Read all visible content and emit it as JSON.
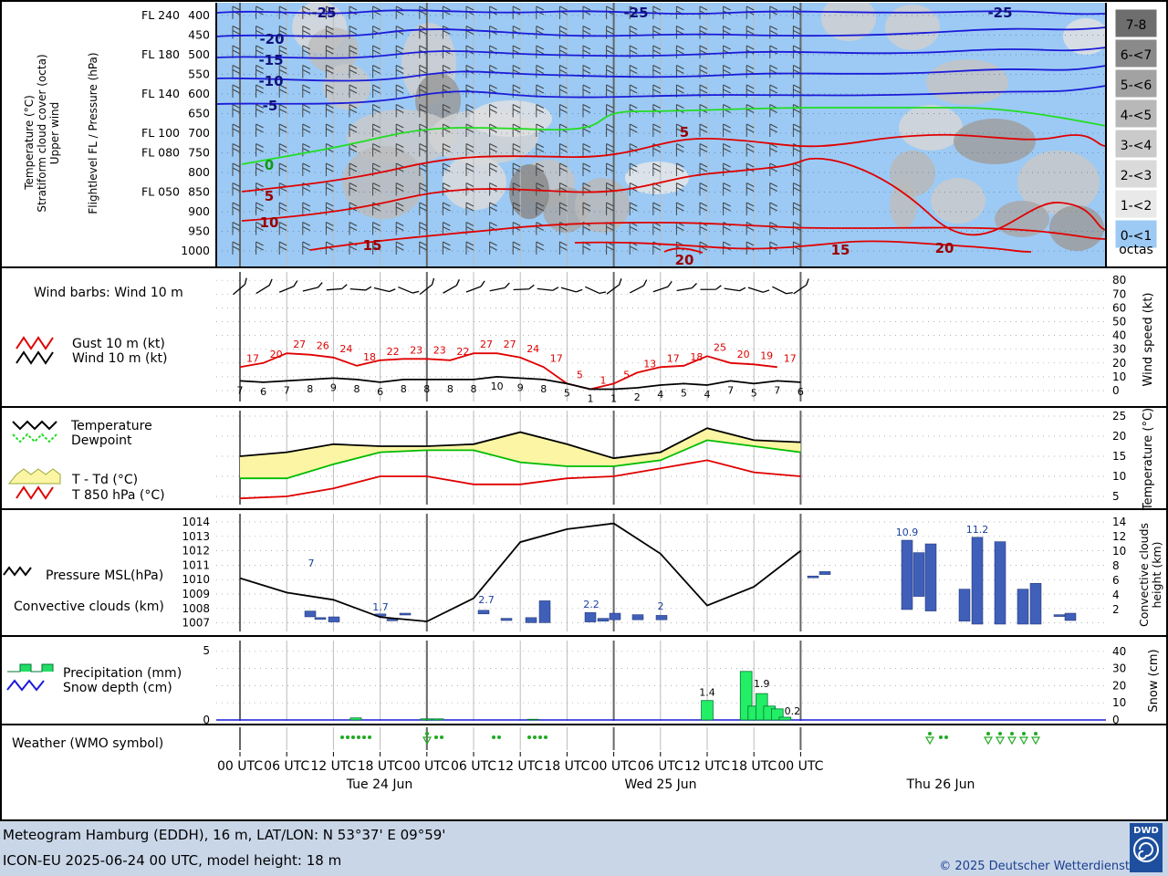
{
  "footer": {
    "line1": "Meteogram Hamburg (EDDH), 16 m, LAT/LON: N 53°37' E 09°59'",
    "line2": "ICON-EU 2025-06-24 00 UTC, model height: 18 m",
    "copyright": "© 2025 Deutscher Wetterdienst",
    "logo_text": "DWD"
  },
  "panel1": {
    "labels": [
      "Temperature (°C)",
      "Stratiform cloud cover (octa)",
      "Upper wind"
    ],
    "axis_label": "Flightlevel FL / Pressure (hPa)",
    "pressure_ticks": [
      "400",
      "450",
      "500",
      "550",
      "600",
      "650",
      "700",
      "750",
      "800",
      "850",
      "900",
      "950",
      "1000"
    ],
    "fl_ticks": [
      "FL 240",
      "FL 180",
      "FL 140",
      "FL 100",
      "FL 080",
      "FL 050"
    ],
    "octas_legend": [
      "7-8",
      "6-<7",
      "5-<6",
      "4-<5",
      "3-<4",
      "2-<3",
      "1-<2",
      "0-<1"
    ],
    "octas_unit": "octas",
    "iso_labels": [
      "-25",
      "-25",
      "-25",
      "-20",
      "-15",
      "-10",
      "-5",
      "0",
      "5",
      "10",
      "15",
      "20",
      "15",
      "20",
      "5"
    ]
  },
  "panel2": {
    "title": "Wind barbs: Wind 10 m",
    "legend_gust": "Gust 10 m (kt)",
    "legend_wind": "Wind 10 m (kt)",
    "axis_label": "Wind speed (kt)",
    "ticks": [
      "80",
      "70",
      "60",
      "50",
      "40",
      "30",
      "20",
      "10",
      "0"
    ]
  },
  "panel3": {
    "legend_temp": "Temperature",
    "legend_dew": "Dewpoint",
    "legend_spread": "T - Td (°C)",
    "legend_t850": "T 850 hPa (°C)",
    "axis_label": "Temperature (°C)",
    "ticks": [
      "25",
      "20",
      "15",
      "10",
      "5"
    ]
  },
  "panel4": {
    "legend_pressure": "Pressure MSL(hPa)",
    "legend_conv": "Convective clouds (km)",
    "axis_label": "Convective clouds height (km)",
    "left_ticks": [
      "1014",
      "1013",
      "1012",
      "1011",
      "1010",
      "1009",
      "1008",
      "1007"
    ],
    "right_ticks": [
      "14",
      "12",
      "10",
      "8",
      "6",
      "4",
      "2"
    ]
  },
  "panel5": {
    "legend_precip": "Precipitation (mm)",
    "legend_snow": "Snow depth (cm)",
    "axis_label": "Snow (cm)",
    "left_ticks": [
      "5",
      "0"
    ],
    "right_ticks": [
      "40",
      "30",
      "20",
      "10",
      "0"
    ]
  },
  "panel6": {
    "title": "Weather (WMO symbol)"
  },
  "time_axis": {
    "hours": [
      "00 UTC",
      "06 UTC",
      "12 UTC",
      "18 UTC",
      "00 UTC",
      "06 UTC",
      "12 UTC",
      "18 UTC",
      "00 UTC",
      "06 UTC",
      "12 UTC",
      "18 UTC",
      "00 UTC"
    ],
    "days": [
      "Tue 24 Jun",
      "Wed 25 Jun",
      "Thu 26 Jun"
    ]
  },
  "chart_data": [
    {
      "type": "line",
      "title": "Wind 10 m / Gust 10 m",
      "x": [
        0,
        3,
        6,
        9,
        12,
        15,
        18,
        21,
        24,
        27,
        30,
        33,
        36,
        39,
        42,
        45,
        48,
        51,
        54,
        57,
        60,
        63,
        66,
        69,
        72
      ],
      "series": [
        {
          "name": "Gust 10 m (kt)",
          "color": "#e00000",
          "values": [
            17,
            20,
            27,
            26,
            24,
            18,
            22,
            23,
            23,
            22,
            27,
            27,
            24,
            17,
            5,
            1,
            5,
            13,
            17,
            18,
            25,
            20,
            19,
            17,
            null
          ]
        },
        {
          "name": "Wind 10 m (kt)",
          "color": "#000000",
          "values": [
            7,
            6,
            7,
            8,
            9,
            8,
            6,
            8,
            8,
            8,
            8,
            10,
            9,
            8,
            5,
            1,
            1,
            2,
            4,
            5,
            4,
            7,
            5,
            7,
            6
          ]
        }
      ],
      "ylim": [
        0,
        80
      ],
      "ylabel": "Wind speed (kt)"
    },
    {
      "type": "line",
      "title": "Temperature / Dewpoint / T 850 hPa",
      "x": [
        0,
        6,
        12,
        18,
        24,
        30,
        36,
        42,
        48,
        54,
        60,
        66,
        72
      ],
      "series": [
        {
          "name": "Temperature",
          "color": "#000000",
          "values": [
            15,
            16,
            18,
            17.5,
            17.5,
            18,
            21,
            18,
            14.5,
            16,
            22,
            19,
            18.5
          ]
        },
        {
          "name": "Dewpoint",
          "color": "#00bb00",
          "values": [
            9.5,
            9.5,
            13,
            16,
            16.5,
            16.5,
            13.5,
            12.5,
            12.5,
            14,
            19,
            17.5,
            16
          ]
        },
        {
          "name": "T 850 hPa",
          "color": "#e00000",
          "values": [
            4.5,
            5,
            7,
            10,
            10,
            8,
            8,
            9.5,
            10,
            12,
            14,
            11,
            10
          ]
        }
      ],
      "ylim": [
        4,
        26
      ],
      "ylabel": "Temperature (°C)"
    },
    {
      "type": "line",
      "title": "Pressure MSL / Convective clouds",
      "x": [
        0,
        6,
        12,
        18,
        24,
        30,
        36,
        42,
        48,
        54,
        60,
        66,
        72
      ],
      "series": [
        {
          "name": "Pressure MSL(hPa)",
          "color": "#000000",
          "values": [
            1010.1,
            1009.1,
            1008.6,
            1007.4,
            1007.1,
            1008.7,
            1012.6,
            1013.5,
            1013.9,
            1011.8,
            1008.2,
            1009.5,
            1012.0
          ]
        }
      ],
      "conv_cloud_tops_km": {
        "x": [
          6,
          12,
          20,
          26,
          35,
          54,
          60
        ],
        "values": [
          7,
          1.7,
          2.7,
          2.2,
          2,
          10.9,
          11.2
        ]
      },
      "ylim": [
        1006.5,
        1014.5
      ],
      "ylabel": "Convective clouds height (km)"
    },
    {
      "type": "bar",
      "title": "Precipitation / Snow depth",
      "x": [
        60,
        65,
        66,
        67,
        68,
        69,
        70
      ],
      "values": [
        1.4,
        3.5,
        1.0,
        1.9,
        1.0,
        0.8,
        0.2
      ],
      "annotations": [
        "1.4",
        "1.9",
        "0.2"
      ],
      "ylim": [
        0,
        5
      ],
      "ylabel": "Precipitation (mm)"
    }
  ]
}
